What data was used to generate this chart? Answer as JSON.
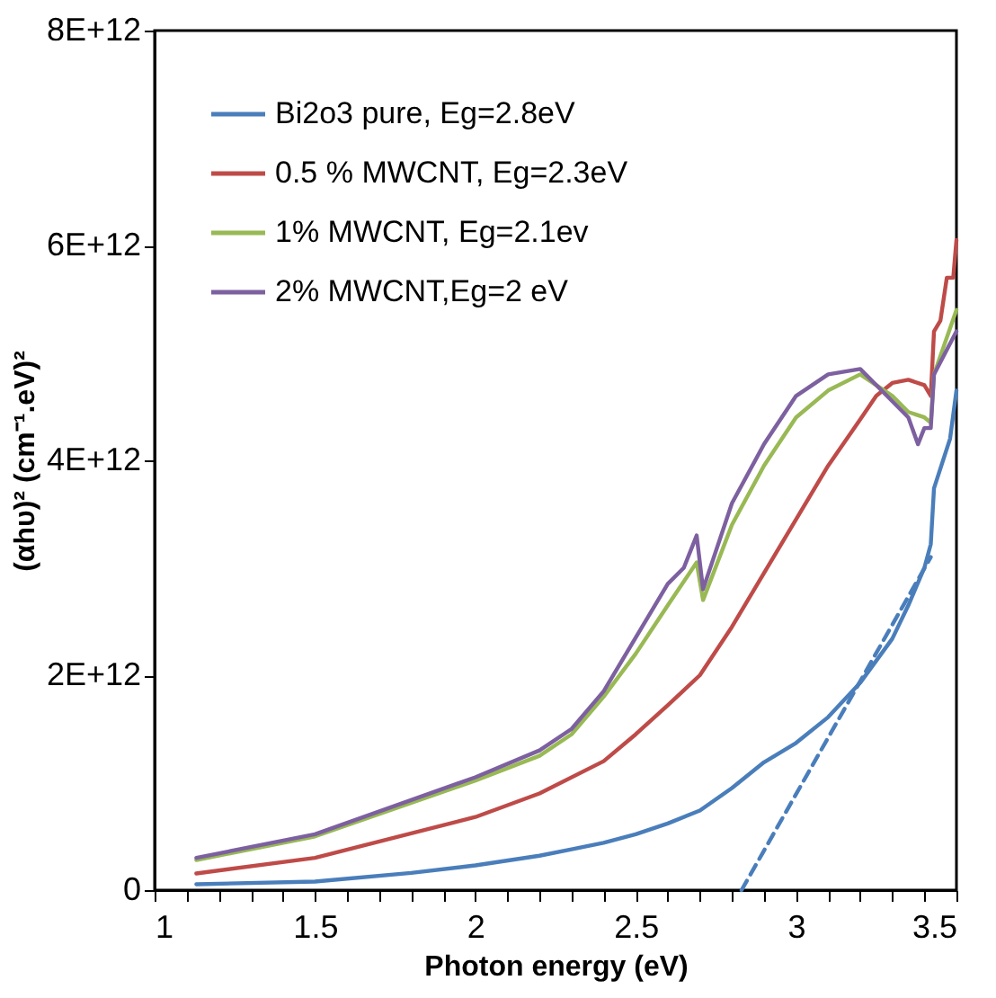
{
  "chart_data": {
    "type": "line",
    "xlabel": "Photon energy (eV)",
    "ylabel": "(αhυ)² (cm⁻¹.eV)²",
    "xlim": [
      1,
      3.5
    ],
    "ylim": [
      0,
      8000000000000.0
    ],
    "xticks": [
      1,
      {
        "value": 1.1,
        "label": null
      },
      {
        "value": 1.2,
        "label": null
      },
      {
        "value": 1.3,
        "label": null
      },
      {
        "value": 1.4,
        "label": null
      },
      1.5,
      {
        "value": 1.6,
        "label": null
      },
      {
        "value": 1.7,
        "label": null
      },
      {
        "value": 1.8,
        "label": null
      },
      {
        "value": 1.9,
        "label": null
      },
      2,
      {
        "value": 2.1,
        "label": null
      },
      {
        "value": 2.2,
        "label": null
      },
      {
        "value": 2.3,
        "label": null
      },
      {
        "value": 2.4,
        "label": null
      },
      2.5,
      {
        "value": 2.6,
        "label": null
      },
      {
        "value": 2.7,
        "label": null
      },
      {
        "value": 2.8,
        "label": null
      },
      {
        "value": 2.9,
        "label": null
      },
      3,
      {
        "value": 3.1,
        "label": null
      },
      {
        "value": 3.2,
        "label": null
      },
      {
        "value": 3.3,
        "label": null
      },
      {
        "value": 3.4,
        "label": null
      },
      3.5
    ],
    "yticks": [
      0,
      {
        "value": 2000000000000.0,
        "label": "2E+12"
      },
      {
        "value": 4000000000000.0,
        "label": "4E+12"
      },
      {
        "value": 6000000000000.0,
        "label": "6E+12"
      },
      {
        "value": 8000000000000.0,
        "label": "8E+12"
      }
    ],
    "legend": "top left",
    "grid": false,
    "series": [
      {
        "name": "Bi2o3 pure, Eg=2.8eV",
        "color": "#4a7ebb",
        "x": [
          1.13,
          1.5,
          1.8,
          2.0,
          2.2,
          2.3,
          2.4,
          2.5,
          2.6,
          2.7,
          2.8,
          2.9,
          3.0,
          3.1,
          3.2,
          3.3,
          3.35,
          3.4,
          3.42,
          3.43,
          3.48,
          3.5
        ],
        "values": [
          55000000000.0,
          80000000000.0,
          160000000000.0,
          230000000000.0,
          320000000000.0,
          380000000000.0,
          440000000000.0,
          520000000000.0,
          620000000000.0,
          740000000000.0,
          950000000000.0,
          1190000000000.0,
          1370000000000.0,
          1610000000000.0,
          1930000000000.0,
          2340000000000.0,
          2650000000000.0,
          3000000000000.0,
          3220000000000.0,
          3740000000000.0,
          4200000000000.0,
          4650000000000.0
        ]
      },
      {
        "name": "0.5 % MWCNT, Eg=2.3eV",
        "color": "#be4b48",
        "x": [
          1.13,
          1.5,
          2.0,
          2.2,
          2.4,
          2.5,
          2.6,
          2.7,
          2.8,
          2.9,
          3.0,
          3.1,
          3.2,
          3.25,
          3.3,
          3.35,
          3.4,
          3.42,
          3.43,
          3.45,
          3.47,
          3.49,
          3.5
        ],
        "values": [
          155000000000.0,
          300000000000.0,
          680000000000.0,
          900000000000.0,
          1200000000000.0,
          1450000000000.0,
          1720000000000.0,
          2000000000000.0,
          2450000000000.0,
          2950000000000.0,
          3450000000000.0,
          3950000000000.0,
          4380000000000.0,
          4600000000000.0,
          4720000000000.0,
          4750000000000.0,
          4700000000000.0,
          4600000000000.0,
          5200000000000.0,
          5300000000000.0,
          5700000000000.0,
          5700000000000.0,
          6050000000000.0
        ]
      },
      {
        "name": "1% MWCNT, Eg=2.1ev",
        "color": "#98b954",
        "x": [
          1.13,
          1.5,
          2.0,
          2.2,
          2.3,
          2.4,
          2.5,
          2.6,
          2.69,
          2.71,
          2.8,
          2.9,
          3.0,
          3.1,
          3.2,
          3.3,
          3.35,
          3.4,
          3.42,
          3.43,
          3.5
        ],
        "values": [
          280000000000.0,
          500000000000.0,
          1020000000000.0,
          1250000000000.0,
          1450000000000.0,
          1800000000000.0,
          2200000000000.0,
          2650000000000.0,
          3050000000000.0,
          2700000000000.0,
          3400000000000.0,
          3950000000000.0,
          4400000000000.0,
          4650000000000.0,
          4800000000000.0,
          4600000000000.0,
          4450000000000.0,
          4400000000000.0,
          4350000000000.0,
          4800000000000.0,
          5400000000000.0
        ]
      },
      {
        "name": "2% MWCNT,Eg=2 eV",
        "color": "#7d60a0",
        "x": [
          1.13,
          1.5,
          2.0,
          2.2,
          2.3,
          2.4,
          2.5,
          2.6,
          2.65,
          2.69,
          2.71,
          2.8,
          2.9,
          3.0,
          3.1,
          3.2,
          3.3,
          3.35,
          3.38,
          3.4,
          3.42,
          3.43,
          3.5
        ],
        "values": [
          300000000000.0,
          520000000000.0,
          1050000000000.0,
          1300000000000.0,
          1500000000000.0,
          1850000000000.0,
          2350000000000.0,
          2850000000000.0,
          3000000000000.0,
          3300000000000.0,
          2800000000000.0,
          3600000000000.0,
          4150000000000.0,
          4600000000000.0,
          4800000000000.0,
          4850000000000.0,
          4550000000000.0,
          4400000000000.0,
          4150000000000.0,
          4300000000000.0,
          4300000000000.0,
          4800000000000.0,
          5200000000000.0
        ]
      },
      {
        "type": "line",
        "color": "#4a7ebb",
        "line_style": "dashed",
        "x": [
          2.83,
          3.42
        ],
        "values": [
          0,
          3100000000000.0
        ]
      }
    ]
  }
}
